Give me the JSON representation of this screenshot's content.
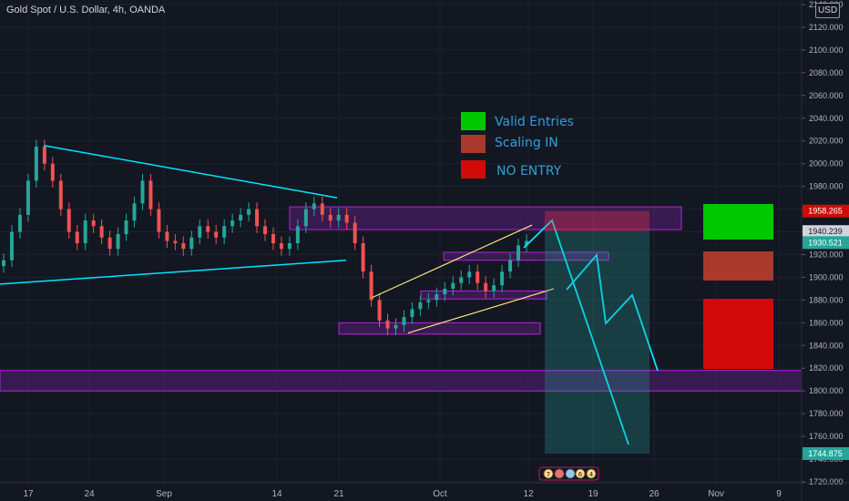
{
  "header": {
    "title": "Gold Spot / U.S. Dollar, 4h, OANDA",
    "currency": "USD"
  },
  "legend": [
    {
      "label": "Valid Entries",
      "color": "#00c800"
    },
    {
      "label": "Scaling IN",
      "color": "#a93a2b"
    },
    {
      "label": "NO ENTRY",
      "color": "#d20a0a"
    }
  ],
  "chart_data": {
    "type": "candlestick",
    "symbol": "XAUUSD",
    "timeframe": "4h",
    "xaxis": {
      "ticks": [
        "17",
        "24",
        "Sep",
        "14",
        "21",
        "Oct",
        "12",
        "19",
        "26",
        "Nov",
        "9"
      ]
    },
    "yaxis": {
      "range": [
        1720,
        2140
      ],
      "ticks": [
        "1720.000",
        "1740.000",
        "1760.000",
        "1780.000",
        "1800.000",
        "1820.000",
        "1840.000",
        "1860.000",
        "1880.000",
        "1900.000",
        "1920.000",
        "1940.000",
        "1960.000",
        "1980.000",
        "2000.000",
        "2020.000",
        "2040.000",
        "2060.000",
        "2080.000",
        "2100.000",
        "2120.000",
        "2140.000"
      ]
    },
    "price_labels": [
      {
        "value": "1958.265",
        "color": "#d20a0a"
      },
      {
        "value": "1940.239",
        "color": "#d1d4dc"
      },
      {
        "value": "1930.521",
        "color": "#26a69a"
      },
      {
        "value": "1744.875",
        "color": "#26a69a"
      }
    ],
    "closes": [
      1915,
      1940,
      1955,
      1985,
      2015,
      2000,
      1985,
      1960,
      1940,
      1930,
      1950,
      1945,
      1935,
      1925,
      1938,
      1950,
      1965,
      1985,
      1960,
      1940,
      1932,
      1930,
      1925,
      1935,
      1945,
      1940,
      1935,
      1945,
      1950,
      1955,
      1960,
      1945,
      1938,
      1930,
      1925,
      1930,
      1945,
      1960,
      1965,
      1955,
      1950,
      1955,
      1948,
      1930,
      1905,
      1880,
      1862,
      1855,
      1858,
      1865,
      1872,
      1878,
      1880,
      1885,
      1890,
      1895,
      1900,
      1905,
      1895,
      1888,
      1893,
      1905,
      1915,
      1928,
      1932
    ],
    "zones": [
      {
        "from": 1942,
        "to": 1962
      },
      {
        "from": 1915,
        "to": 1922
      },
      {
        "from": 1881,
        "to": 1888
      },
      {
        "from": 1850,
        "to": 1860
      },
      {
        "from": 1800,
        "to": 1818
      }
    ],
    "position": {
      "entry": 1940.239,
      "stop": 1958.265,
      "target": 1744.875
    }
  }
}
